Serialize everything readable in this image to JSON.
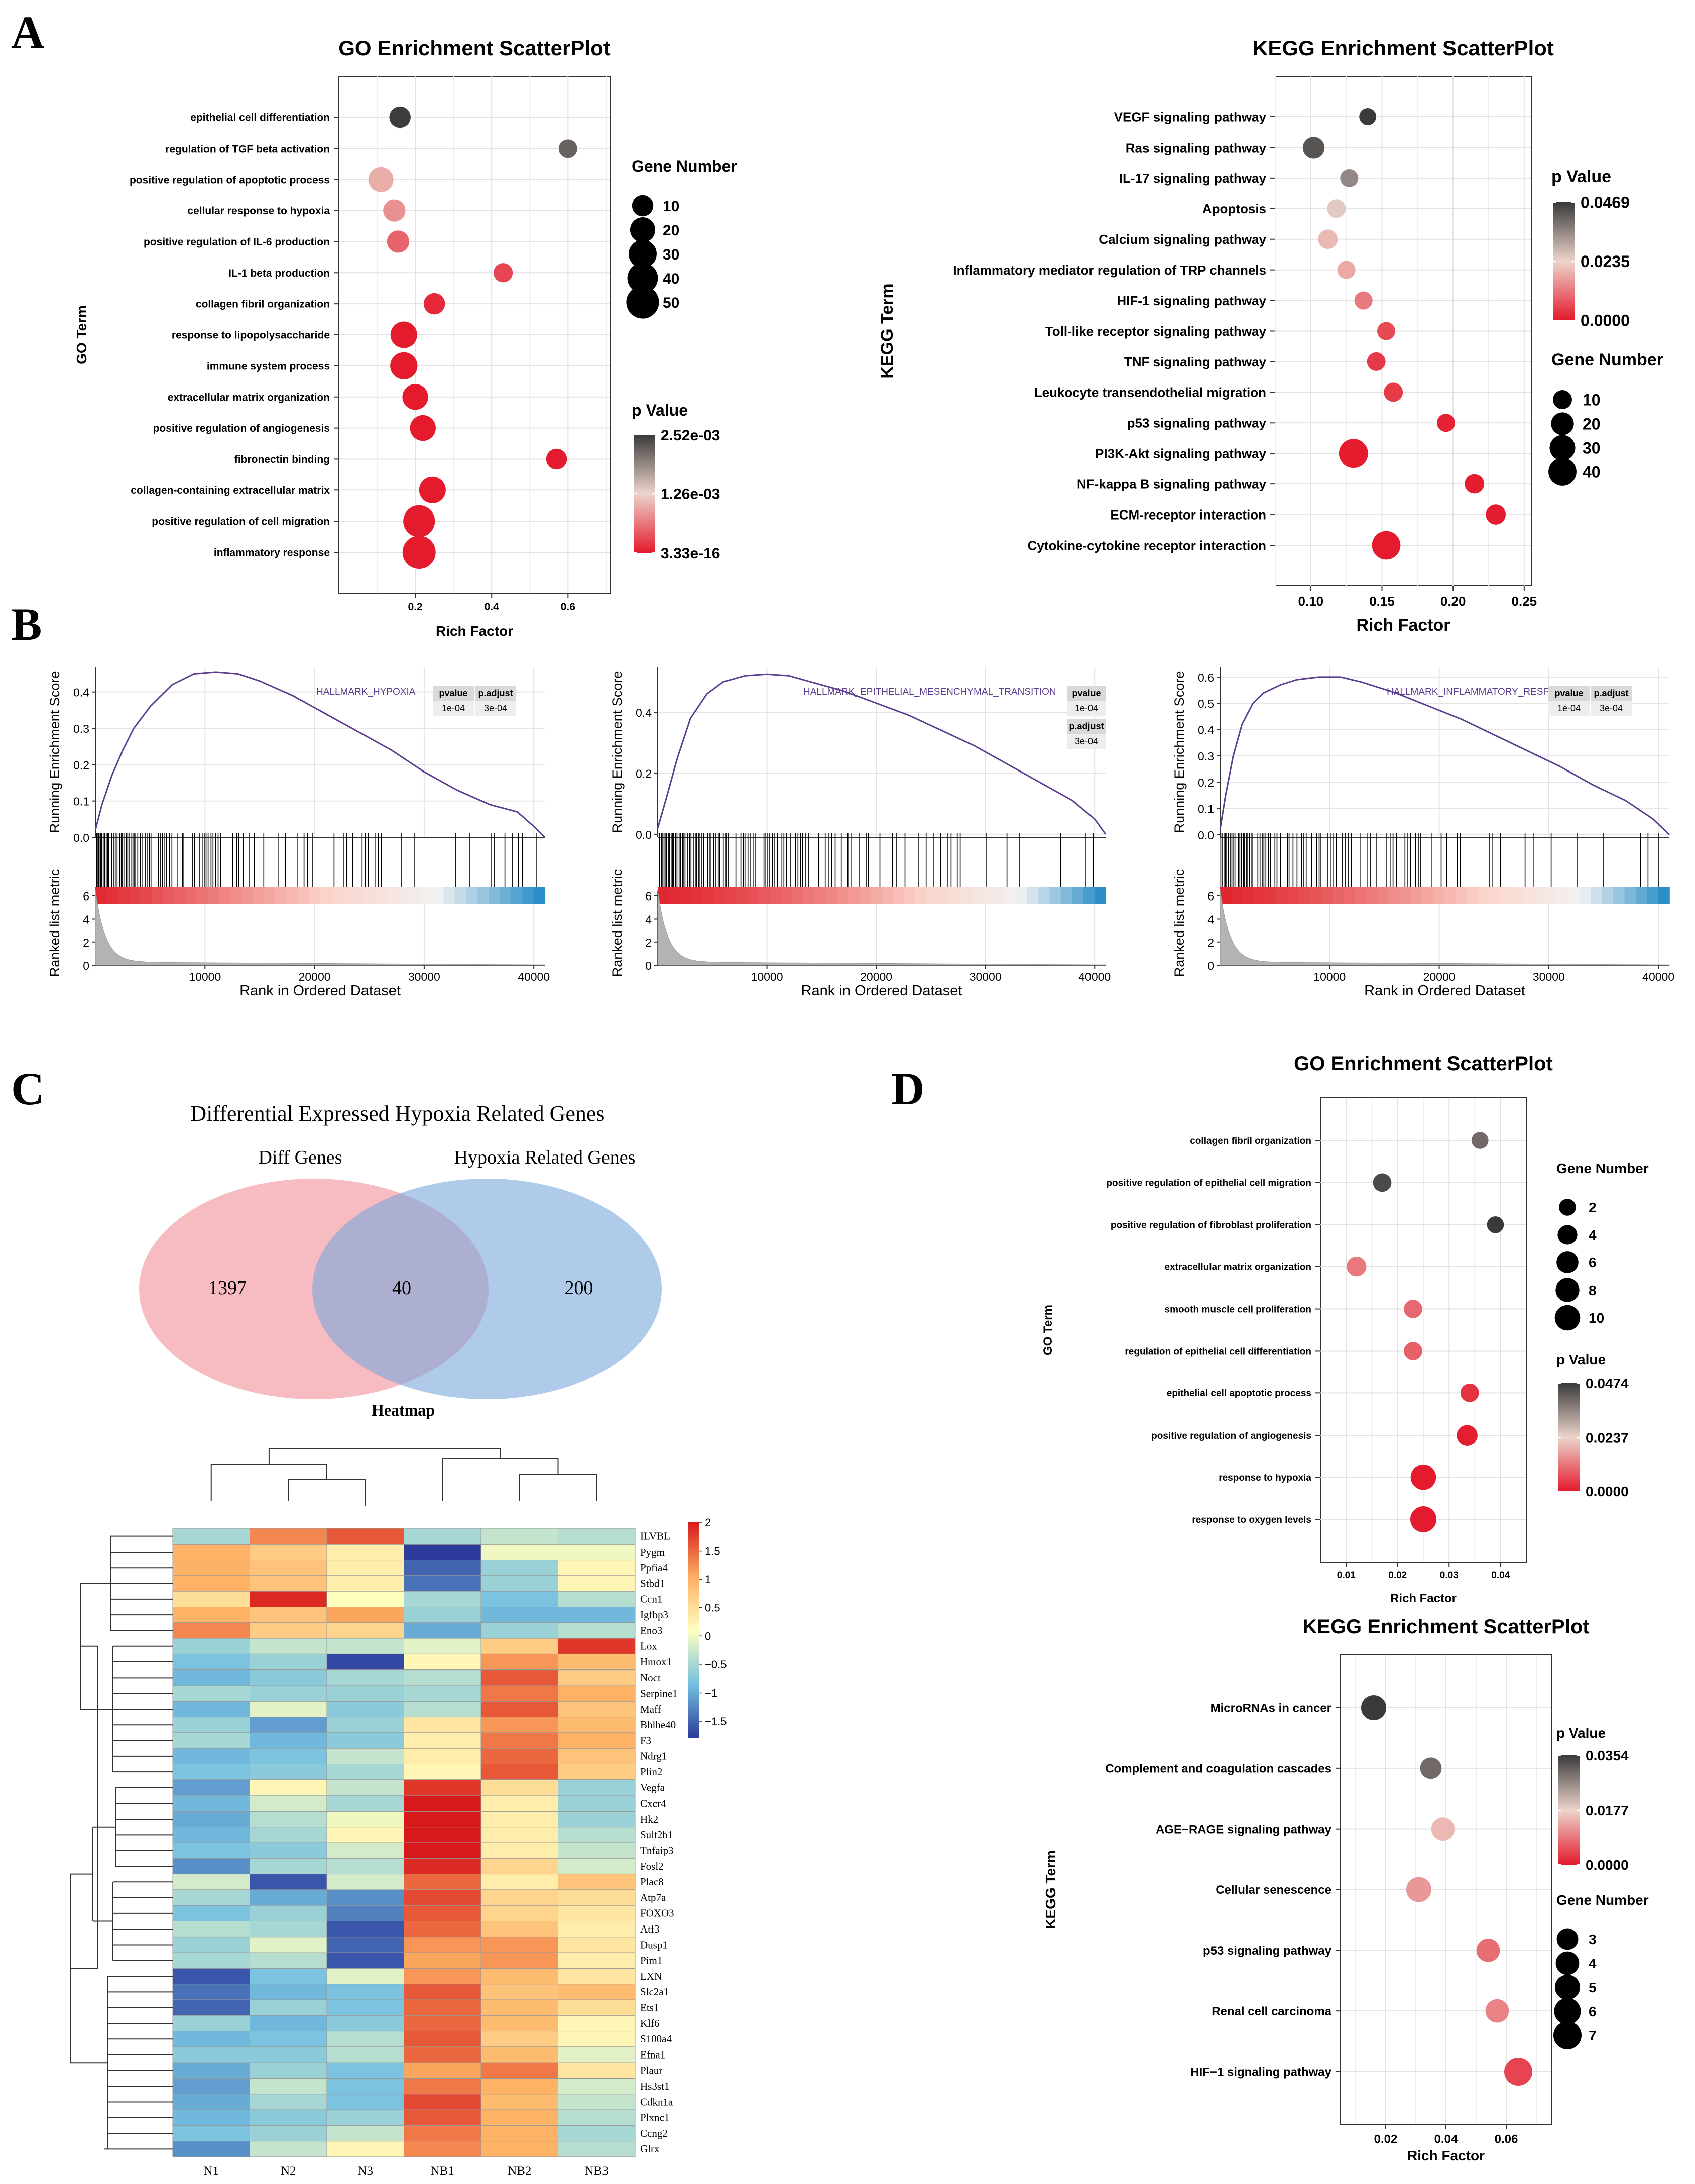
{
  "panels": {
    "A": "A",
    "B": "B",
    "C": "C",
    "D": "D"
  },
  "chart_data": [
    {
      "id": "go_a",
      "type": "scatter",
      "title": "GO Enrichment ScatterPlot",
      "xlabel": "Rich Factor",
      "ylabel": "GO Term",
      "xlim": [
        0,
        0.71
      ],
      "xticks": [
        0.2,
        0.4,
        0.6
      ],
      "xticklabels": [
        "0.2",
        "0.4",
        "0.6"
      ],
      "categories": [
        "epithelial cell differentiation",
        "regulation of TGF beta activation",
        "positive regulation of apoptotic process",
        "cellular response to hypoxia",
        "positive regulation of IL-6 production",
        "IL-1 beta production",
        "collagen fibril organization",
        "response to lipopolysaccharide",
        "immune system process",
        "extracellular matrix organization",
        "positive regulation of angiogenesis",
        "fibronectin binding",
        "collagen-containing extracellular matrix",
        "positive regulation of cell migration",
        "inflammatory response"
      ],
      "x": [
        0.16,
        0.6,
        0.11,
        0.145,
        0.155,
        0.43,
        0.25,
        0.17,
        0.17,
        0.2,
        0.22,
        0.57,
        0.245,
        0.21,
        0.21
      ],
      "size": [
        10,
        5,
        20,
        12,
        12,
        6,
        10,
        25,
        27,
        22,
        22,
        9,
        25,
        45,
        52
      ],
      "pvalue": [
        0.0025,
        0.0022,
        0.001,
        0.0008,
        0.0005,
        0.0003,
        0.0001,
        1e-08,
        1e-08,
        1e-06,
        1e-07,
        1e-05,
        1e-08,
        1e-12,
        3.33e-16
      ],
      "size_legend": {
        "title": "Gene Number",
        "values": [
          10,
          20,
          30,
          40,
          50
        ]
      },
      "color_legend": {
        "title": "p Value",
        "labels": [
          "2.52e-03",
          "1.26e-03",
          "3.33e-16"
        ],
        "min": 0,
        "max": 0.00252
      }
    },
    {
      "id": "kegg_a",
      "type": "scatter",
      "title": "KEGG Enrichment ScatterPlot",
      "xlabel": "Rich Factor",
      "ylabel": "KEGG Term",
      "xlim": [
        0.075,
        0.255
      ],
      "xticks": [
        0.1,
        0.15,
        0.2,
        0.25
      ],
      "xticklabels": [
        "0.10",
        "0.15",
        "0.20",
        "0.25"
      ],
      "categories": [
        "VEGF signaling pathway",
        "Ras signaling pathway",
        "IL-17 signaling pathway",
        "Apoptosis",
        "Calcium signaling pathway",
        "Inflammatory mediator regulation of TRP channels",
        "HIF-1 signaling pathway",
        "Toll-like receptor signaling pathway",
        "TNF signaling pathway",
        "Leukocyte transendothelial migration",
        "p53 signaling pathway",
        "PI3K-Akt signaling pathway",
        "NF-kappa B signaling pathway",
        "ECM-receptor interaction",
        "Cytokine-cytokine receptor interaction"
      ],
      "x": [
        0.14,
        0.102,
        0.127,
        0.118,
        0.112,
        0.125,
        0.137,
        0.153,
        0.146,
        0.158,
        0.195,
        0.13,
        0.215,
        0.23,
        0.153
      ],
      "size": [
        6,
        17,
        8,
        9,
        11,
        8,
        8,
        8,
        9,
        10,
        8,
        45,
        11,
        12,
        42
      ],
      "pvalue": [
        0.0469,
        0.043,
        0.035,
        0.025,
        0.02,
        0.018,
        0.012,
        0.006,
        0.004,
        0.004,
        0.001,
        0.0002,
        0.0003,
        0.0003,
        1e-05
      ],
      "size_legend": {
        "title": "Gene Number",
        "values": [
          10,
          20,
          30,
          40
        ]
      },
      "color_legend": {
        "title": "p Value",
        "labels": [
          "0.0469",
          "0.0235",
          "0.0000"
        ],
        "min": 0,
        "max": 0.0469
      }
    },
    {
      "id": "gsea1",
      "type": "line",
      "title": "HALLMARK_HYPOXIA",
      "xlabel": "Rank in Ordered Dataset",
      "ylabel": "Running Enrichment Score",
      "ylabel2": "Ranked list metric",
      "xlim": [
        0,
        41000
      ],
      "xticks": [
        10000,
        20000,
        30000,
        40000
      ],
      "ylim": [
        0,
        0.47
      ],
      "yticks": [
        0,
        0.1,
        0.2,
        0.3,
        0.4
      ],
      "yticklabels": [
        "0.0",
        "0.1",
        "0.2",
        "0.3",
        "0.4"
      ],
      "y2ticks": [
        0,
        2,
        4,
        6
      ],
      "x": [
        0,
        600,
        1500,
        2500,
        3500,
        5000,
        7000,
        9000,
        11000,
        13000,
        15000,
        18000,
        21000,
        24000,
        27000,
        30000,
        33000,
        36000,
        38500,
        40000,
        41000
      ],
      "y": [
        0.02,
        0.09,
        0.17,
        0.24,
        0.3,
        0.36,
        0.42,
        0.45,
        0.455,
        0.45,
        0.43,
        0.39,
        0.34,
        0.29,
        0.24,
        0.18,
        0.13,
        0.09,
        0.07,
        0.03,
        0.0
      ],
      "table": {
        "headers": [
          "pvalue",
          "p.adjust"
        ],
        "rows": [
          [
            "1e-04",
            "3e-04"
          ]
        ]
      }
    },
    {
      "id": "gsea2",
      "type": "line",
      "title": "HALLMARK_EPITHELIAL_MESENCHYMAL_TRANSITION",
      "xlabel": "Rank in Ordered Dataset",
      "ylabel": "Running Enrichment Score",
      "ylabel2": "Ranked list metric",
      "xlim": [
        0,
        41000
      ],
      "xticks": [
        10000,
        20000,
        30000,
        40000
      ],
      "ylim": [
        -0.01,
        0.55
      ],
      "yticks": [
        0,
        0.2,
        0.4
      ],
      "yticklabels": [
        "0.0",
        "0.2",
        "0.4"
      ],
      "y2ticks": [
        0,
        2,
        4,
        6
      ],
      "x": [
        0,
        800,
        1800,
        3000,
        4500,
        6000,
        8000,
        10000,
        12000,
        14000,
        17000,
        20000,
        23000,
        26000,
        29000,
        32000,
        35000,
        38000,
        40000,
        41000
      ],
      "y": [
        0.02,
        0.12,
        0.25,
        0.38,
        0.46,
        0.5,
        0.52,
        0.525,
        0.52,
        0.5,
        0.47,
        0.43,
        0.39,
        0.34,
        0.29,
        0.23,
        0.17,
        0.11,
        0.05,
        0.0
      ],
      "table": {
        "headers": [
          "pvalue",
          "p.adjust"
        ],
        "rows": [
          [
            "1e-04",
            "3e-04"
          ]
        ]
      }
    },
    {
      "id": "gsea3",
      "type": "line",
      "title": "HALLMARK_INFLAMMATORY_RESPONSE",
      "xlabel": "Rank in Ordered Dataset",
      "ylabel": "Running Enrichment Score",
      "ylabel2": "Ranked list metric",
      "xlim": [
        0,
        41000
      ],
      "xticks": [
        10000,
        20000,
        30000,
        40000
      ],
      "ylim": [
        -0.01,
        0.64
      ],
      "yticks": [
        0,
        0.1,
        0.2,
        0.3,
        0.4,
        0.5,
        0.6
      ],
      "yticklabels": [
        "0.0",
        "0.1",
        "0.2",
        "0.3",
        "0.4",
        "0.5",
        "0.6"
      ],
      "y2ticks": [
        0,
        2,
        4,
        6
      ],
      "x": [
        0,
        500,
        1200,
        2000,
        3000,
        4000,
        5500,
        7000,
        9000,
        11000,
        13000,
        16000,
        19000,
        22000,
        25000,
        28000,
        31000,
        34000,
        37000,
        39500,
        41000
      ],
      "y": [
        0.02,
        0.15,
        0.3,
        0.42,
        0.5,
        0.54,
        0.57,
        0.59,
        0.6,
        0.6,
        0.58,
        0.54,
        0.49,
        0.44,
        0.38,
        0.32,
        0.26,
        0.19,
        0.13,
        0.06,
        0.0
      ],
      "table": {
        "headers": [
          "pvalue",
          "p.adjust"
        ],
        "rows": [
          [
            "1e-04",
            "3e-04"
          ]
        ]
      }
    },
    {
      "id": "venn",
      "type": "venn",
      "title": "Differential Expressed Hypoxia Related Genes",
      "sets": [
        "Diff Genes",
        "Hypoxia Related Genes"
      ],
      "values": [
        1397,
        40,
        200
      ]
    },
    {
      "id": "heatmap",
      "type": "heatmap",
      "title": "Heatmap",
      "columns": [
        "N1",
        "N2",
        "N3",
        "NB1",
        "NB2",
        "NB3"
      ],
      "rows": [
        "ILVBL",
        "Pygm",
        "Ppfia4",
        "Stbd1",
        "Ccn1",
        "Igfbp3",
        "Eno3",
        "Lox",
        "Hmox1",
        "Noct",
        "Serpine1",
        "Maff",
        "Bhlhe40",
        "F3",
        "Ndrg1",
        "Plin2",
        "Vegfa",
        "Cxcr4",
        "Hk2",
        "Sult2b1",
        "Tnfaip3",
        "Fosl2",
        "Plac8",
        "Atp7a",
        "FOXO3",
        "Atf3",
        "Dusp1",
        "Pim1",
        "LXN",
        "Slc2a1",
        "Ets1",
        "Klf6",
        "S100a4",
        "Efna1",
        "Plaur",
        "Hs3st1",
        "Cdkn1a",
        "Plxnc1",
        "Ccng2",
        "Glrx"
      ],
      "values": [
        [
          -0.5,
          1.3,
          1.6,
          -0.5,
          -0.3,
          -0.4
        ],
        [
          1.0,
          0.7,
          0.3,
          -1.9,
          0,
          0
        ],
        [
          1.0,
          0.8,
          0.3,
          -1.5,
          -0.6,
          0.2
        ],
        [
          1.0,
          0.8,
          0.3,
          -1.4,
          -0.6,
          0.2
        ],
        [
          0.5,
          1.9,
          0.1,
          -0.5,
          -0.8,
          -0.4
        ],
        [
          1.0,
          0.8,
          1.1,
          -0.6,
          -0.9,
          -0.9
        ],
        [
          1.3,
          0.7,
          0.6,
          -1.0,
          -0.6,
          -0.4
        ],
        [
          -0.6,
          -0.3,
          -0.3,
          -0.1,
          0.7,
          1.8
        ],
        [
          -0.8,
          -0.6,
          -1.7,
          0.2,
          1.2,
          0.9
        ],
        [
          -0.9,
          -0.7,
          -0.5,
          -0.4,
          1.6,
          0.7
        ],
        [
          -0.5,
          -0.6,
          -0.6,
          -0.5,
          1.4,
          1.0
        ],
        [
          -0.9,
          -0.1,
          -0.7,
          -0.4,
          1.6,
          0.8
        ],
        [
          -0.6,
          -1.1,
          -0.6,
          0.4,
          1.2,
          0.9
        ],
        [
          -0.5,
          -0.9,
          -0.7,
          0.3,
          1.4,
          1.0
        ],
        [
          -0.9,
          -0.8,
          -0.3,
          0.3,
          1.5,
          0.8
        ],
        [
          -0.8,
          -0.7,
          -0.5,
          0.2,
          1.6,
          0.7
        ],
        [
          -1.1,
          0.2,
          -0.3,
          1.8,
          0.5,
          -0.6
        ],
        [
          -0.9,
          -0.2,
          -0.5,
          2.0,
          0.3,
          -0.6
        ],
        [
          -1.0,
          -0.4,
          0,
          2.0,
          0.3,
          -0.6
        ],
        [
          -0.9,
          -0.5,
          0.2,
          2.0,
          0.3,
          -0.4
        ],
        [
          -0.8,
          -0.7,
          -0.2,
          2.0,
          0.3,
          -0.3
        ],
        [
          -1.2,
          -0.5,
          -0.4,
          1.9,
          0.6,
          -0.2
        ],
        [
          -0.2,
          -1.6,
          -0.2,
          1.5,
          0.3,
          0.8
        ],
        [
          -0.5,
          -1.0,
          -1.2,
          1.7,
          0.6,
          0.5
        ],
        [
          -0.8,
          -0.6,
          -1.3,
          1.6,
          0.6,
          0.4
        ],
        [
          -0.4,
          -0.5,
          -1.6,
          1.5,
          0.8,
          0.3
        ],
        [
          -0.6,
          -0.1,
          -1.5,
          1.2,
          1.2,
          0.4
        ],
        [
          -0.5,
          -0.4,
          -1.6,
          1.1,
          1.2,
          0.3
        ],
        [
          -1.6,
          -0.8,
          -0.1,
          1.2,
          0.9,
          0.4
        ],
        [
          -1.4,
          -0.9,
          -0.8,
          1.6,
          0.8,
          0.9
        ],
        [
          -1.5,
          -0.6,
          -0.8,
          1.5,
          0.9,
          0.5
        ],
        [
          -0.6,
          -0.9,
          -0.7,
          1.5,
          0.9,
          0.2
        ],
        [
          -0.9,
          -0.8,
          -0.4,
          1.6,
          0.7,
          0.2
        ],
        [
          -0.7,
          -0.7,
          -0.4,
          1.5,
          0.9,
          -0.1
        ],
        [
          -1.0,
          -0.6,
          -0.8,
          1.1,
          1.4,
          0.4
        ],
        [
          -1.1,
          -0.3,
          -0.8,
          1.4,
          1.0,
          -0.2
        ],
        [
          -1.0,
          -0.5,
          -0.8,
          1.7,
          0.9,
          -0.3
        ],
        [
          -0.9,
          -0.7,
          -0.6,
          1.6,
          1.0,
          -0.4
        ],
        [
          -0.8,
          -0.6,
          -0.3,
          1.4,
          1.0,
          -0.5
        ],
        [
          -1.2,
          -0.3,
          0.2,
          1.3,
          1.0,
          -0.4
        ]
      ],
      "colorbar": {
        "min": -1.8,
        "max": 2.0,
        "ticks": [
          2,
          1.5,
          1,
          0.5,
          0,
          -0.5,
          -1,
          -1.5
        ],
        "ticklabels": [
          "2",
          "1.5",
          "1",
          "0.5",
          "0",
          "−0.5",
          "−1",
          "−1.5"
        ]
      }
    },
    {
      "id": "go_d",
      "type": "scatter",
      "title": "GO Enrichment ScatterPlot",
      "xlabel": "Rich Factor",
      "ylabel": "GO Term",
      "xlim": [
        0.005,
        0.045
      ],
      "xticks": [
        0.01,
        0.02,
        0.03,
        0.04
      ],
      "xticklabels": [
        "0.01",
        "0.02",
        "0.03",
        "0.04"
      ],
      "categories": [
        "collagen fibril organization",
        "positive regulation of epithelial cell migration",
        "positive regulation of fibroblast proliferation",
        "extracellular matrix organization",
        "smooth muscle cell proliferation",
        "regulation of epithelial cell differentiation",
        "epithelial cell apoptotic process",
        "positive regulation of angiogenesis",
        "response to hypoxia",
        "response to oxygen levels"
      ],
      "x": [
        0.036,
        0.017,
        0.039,
        0.012,
        0.023,
        0.023,
        0.034,
        0.0335,
        0.025,
        0.025
      ],
      "size": [
        2,
        3,
        2,
        4,
        3,
        3,
        3,
        5,
        10,
        11
      ],
      "pvalue": [
        0.04,
        0.045,
        0.0474,
        0.012,
        0.01,
        0.009,
        0.003,
        0.0005,
        0.0001,
        0.0001
      ],
      "size_legend": {
        "title": "Gene Number",
        "values": [
          2,
          4,
          6,
          8,
          10
        ]
      },
      "color_legend": {
        "title": "p Value",
        "labels": [
          "0.0474",
          "0.0237",
          "0.0000"
        ],
        "min": 0,
        "max": 0.0474
      }
    },
    {
      "id": "kegg_d",
      "type": "scatter",
      "title": "KEGG Enrichment ScatterPlot",
      "xlabel": "Rich Factor",
      "ylabel": "KEGG Term",
      "xlim": [
        0.005,
        0.075
      ],
      "xticks": [
        0.02,
        0.04,
        0.06
      ],
      "xticklabels": [
        "0.02",
        "0.04",
        "0.06"
      ],
      "categories": [
        "MicroRNAs in cancer",
        "Complement and coagulation cascades",
        "AGE−RAGE signaling pathway",
        "Cellular senescence",
        "p53 signaling pathway",
        "Renal cell carcinoma",
        "HIF−1 signaling pathway"
      ],
      "x": [
        0.016,
        0.035,
        0.039,
        0.031,
        0.054,
        0.057,
        0.064
      ],
      "size": [
        5,
        3,
        4,
        5,
        4,
        4,
        7
      ],
      "pvalue": [
        0.0354,
        0.03,
        0.015,
        0.012,
        0.008,
        0.01,
        0.004
      ],
      "size_legend": {
        "title": "Gene Number",
        "values": [
          3,
          4,
          5,
          6,
          7
        ]
      },
      "color_legend": {
        "title": "p Value",
        "labels": [
          "0.0354",
          "0.0177",
          "0.0000"
        ],
        "min": 0,
        "max": 0.0354
      }
    }
  ]
}
